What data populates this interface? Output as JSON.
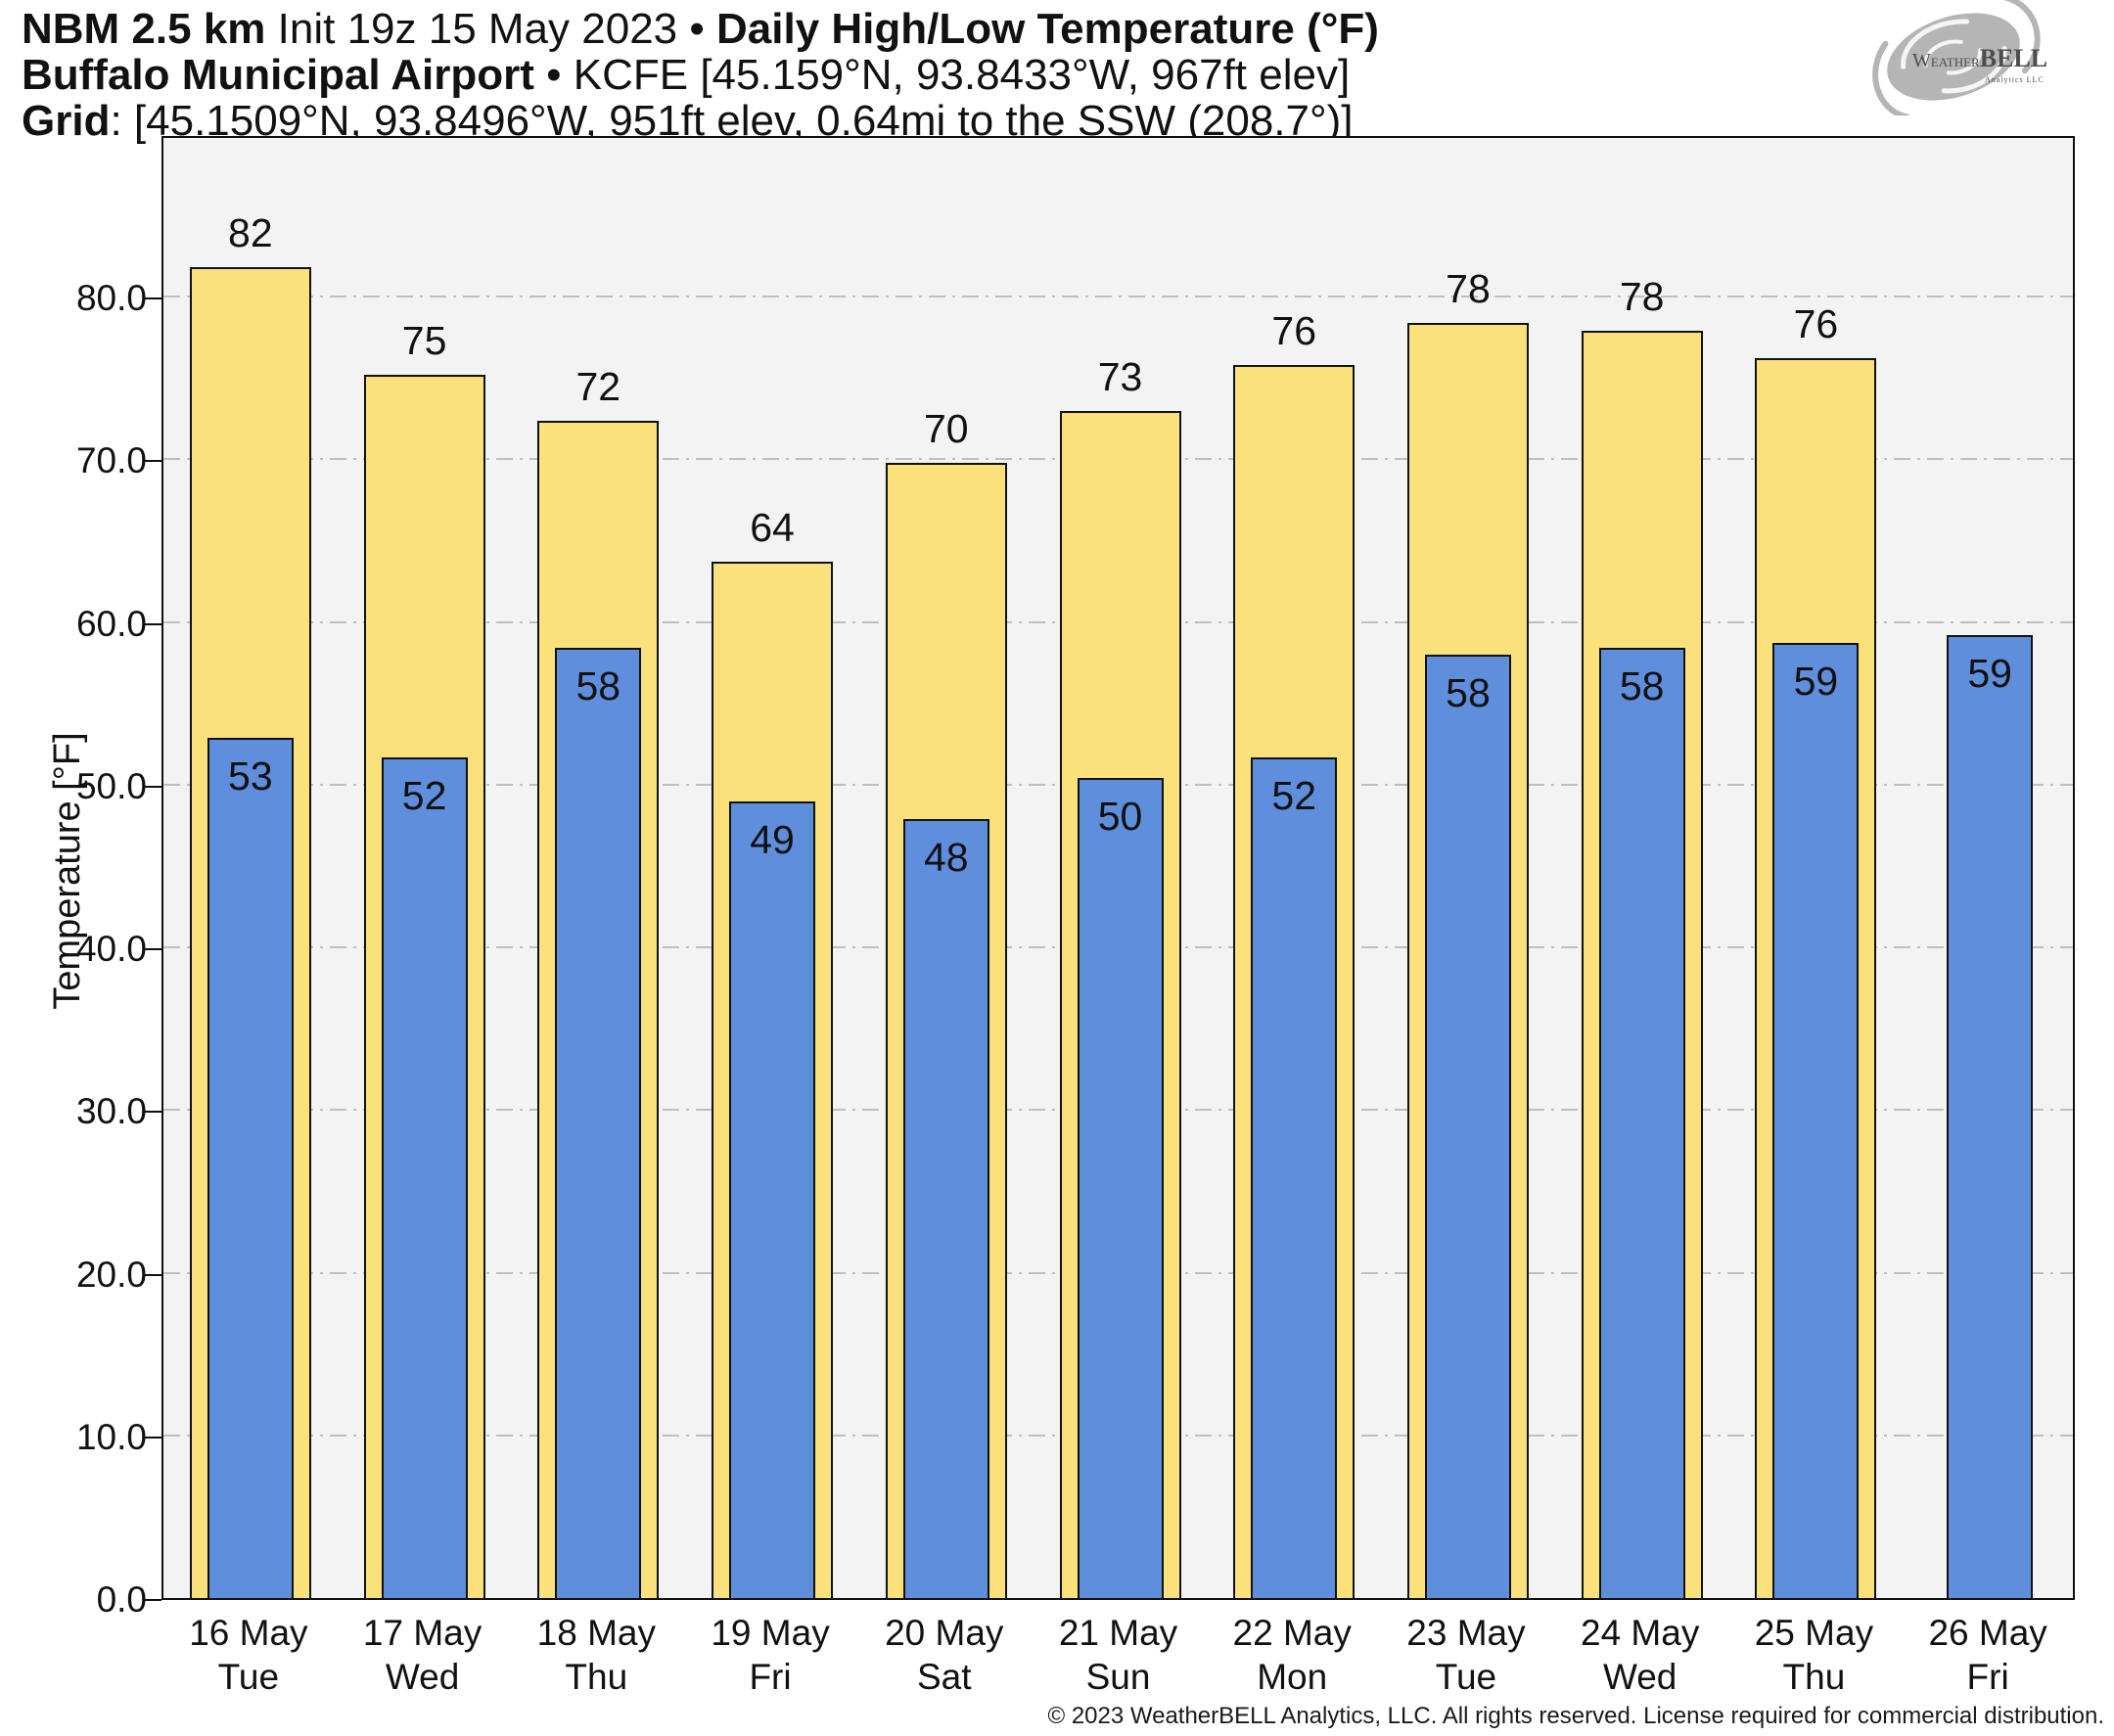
{
  "header": {
    "lines": [
      [
        {
          "t": "NBM 2.5 km",
          "b": true
        },
        {
          "t": " Init 19z 15 May 2023 ",
          "b": false
        },
        {
          "t": "• ",
          "b": false
        },
        {
          "t": "Daily High/Low Temperature (°F)",
          "b": true
        }
      ],
      [
        {
          "t": "Buffalo Municipal Airport",
          "b": true
        },
        {
          "t": " • KCFE [45.159°N, 93.8433°W, 967ft elev]",
          "b": false
        }
      ],
      [
        {
          "t": "Grid",
          "b": true
        },
        {
          "t": ": [45.1509°N, 93.8496°W, 951ft elev, 0.64mi to the SSW (208.7°)]",
          "b": false
        }
      ]
    ]
  },
  "logo": {
    "brand_prefix": "W",
    "brand_weather": "EATHER",
    "brand_bell": "BELL",
    "subtext": "Analytics LLC"
  },
  "chart_data": {
    "type": "bar",
    "title": "Daily High/Low Temperature (°F)",
    "ylabel": "Temperature [°F]",
    "ylim": [
      0,
      90
    ],
    "yticks": [
      0,
      10,
      20,
      30,
      40,
      50,
      60,
      70,
      80
    ],
    "ytick_labels": [
      "0.0",
      "10.0",
      "20.0",
      "30.0",
      "40.0",
      "50.0",
      "60.0",
      "70.0",
      "80.0"
    ],
    "grid": "horizontal dash-dot gray lines",
    "legend_position": "none",
    "categories": [
      "16 May",
      "17 May",
      "18 May",
      "19 May",
      "20 May",
      "21 May",
      "22 May",
      "23 May",
      "24 May",
      "25 May",
      "26 May"
    ],
    "weekdays": [
      "Tue",
      "Wed",
      "Thu",
      "Fri",
      "Sat",
      "Sun",
      "Mon",
      "Tue",
      "Wed",
      "Thu",
      "Fri"
    ],
    "series": [
      {
        "name": "High",
        "color": "#fbe17c",
        "values": [
          82,
          75,
          72,
          64,
          70,
          73,
          76,
          78,
          78,
          76,
          null
        ]
      },
      {
        "name": "Low",
        "color": "#5f8edc",
        "values": [
          53,
          52,
          58,
          49,
          48,
          50,
          52,
          58,
          58,
          59,
          59
        ]
      }
    ],
    "days": [
      {
        "date": "16 May",
        "weekday": "Tue",
        "high": 82,
        "high_value": 81.8,
        "low": 53,
        "low_value": 52.9
      },
      {
        "date": "17 May",
        "weekday": "Wed",
        "high": 75,
        "high_value": 75.2,
        "low": 52,
        "low_value": 51.7
      },
      {
        "date": "18 May",
        "weekday": "Thu",
        "high": 72,
        "high_value": 72.4,
        "low": 58,
        "low_value": 58.4
      },
      {
        "date": "19 May",
        "weekday": "Fri",
        "high": 64,
        "high_value": 63.7,
        "low": 49,
        "low_value": 49.0
      },
      {
        "date": "20 May",
        "weekday": "Sat",
        "high": 70,
        "high_value": 69.8,
        "low": 48,
        "low_value": 47.9
      },
      {
        "date": "21 May",
        "weekday": "Sun",
        "high": 73,
        "high_value": 73.0,
        "low": 50,
        "low_value": 50.4
      },
      {
        "date": "22 May",
        "weekday": "Mon",
        "high": 76,
        "high_value": 75.8,
        "low": 52,
        "low_value": 51.7
      },
      {
        "date": "23 May",
        "weekday": "Tue",
        "high": 78,
        "high_value": 78.4,
        "low": 58,
        "low_value": 58.0
      },
      {
        "date": "24 May",
        "weekday": "Wed",
        "high": 78,
        "high_value": 77.9,
        "low": 58,
        "low_value": 58.4
      },
      {
        "date": "25 May",
        "weekday": "Thu",
        "high": 76,
        "high_value": 76.2,
        "low": 59,
        "low_value": 58.7
      },
      {
        "date": "26 May",
        "weekday": "Fri",
        "high": null,
        "high_value": null,
        "low": 59,
        "low_value": 59.2
      }
    ]
  },
  "colors": {
    "high_fill": "#fbe17c",
    "low_fill": "#5f8edc",
    "bar_border": "#111111",
    "plot_bg": "#f3f3f3",
    "grid": "#bfbfbf",
    "axis": "#111111",
    "logo_gray": "#b5b5b5",
    "logo_text": "#4d4d4d"
  },
  "footer": {
    "copyright": "© 2023 WeatherBELL Analytics, LLC. All rights reserved. License required for commercial distribution."
  }
}
